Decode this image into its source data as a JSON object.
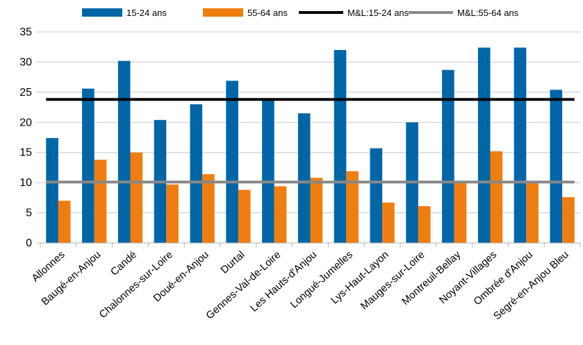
{
  "chart_data": {
    "type": "bar",
    "categories": [
      "Allonnes",
      "Baugé-en-Anjou",
      "Candé",
      "Chalonnes-sur-Loire",
      "Doué-en-Anjou",
      "Durtal",
      "Gennes-Val-de-Loire",
      "Les Hauts-d'Anjou",
      "Longué-Jumelles",
      "Lys-Haut-Layon",
      "Mauges-sur-Loire",
      "Montreuil-Bellay",
      "Noyant-Villages",
      "Ombrée d'Anjou",
      "Segré-en-Anjou Bleu"
    ],
    "series": [
      {
        "name": "15-24 ans",
        "color": "#0066a6",
        "values": [
          17.4,
          25.6,
          30.2,
          20.4,
          23.0,
          26.9,
          23.9,
          21.5,
          32.0,
          15.7,
          20.0,
          28.7,
          32.4,
          32.4,
          25.4
        ]
      },
      {
        "name": "55-64 ans",
        "color": "#f07d10",
        "values": [
          7.0,
          13.8,
          15.0,
          9.7,
          11.4,
          8.8,
          9.4,
          10.8,
          11.9,
          6.7,
          6.1,
          10.1,
          15.2,
          10.2,
          7.6
        ]
      }
    ],
    "reference_lines": [
      {
        "name": "M&L:15-24 ans",
        "value": 23.8,
        "color": "#000000"
      },
      {
        "name": "M&L:55-64 ans",
        "value": 10.1,
        "color": "#888888"
      }
    ],
    "ylim": [
      0,
      35
    ],
    "yticks": [
      "0",
      "5",
      "10",
      "15",
      "20",
      "25",
      "30",
      "35"
    ],
    "grid": true,
    "legend_position": "top",
    "title": "",
    "xlabel": "",
    "ylabel": ""
  }
}
